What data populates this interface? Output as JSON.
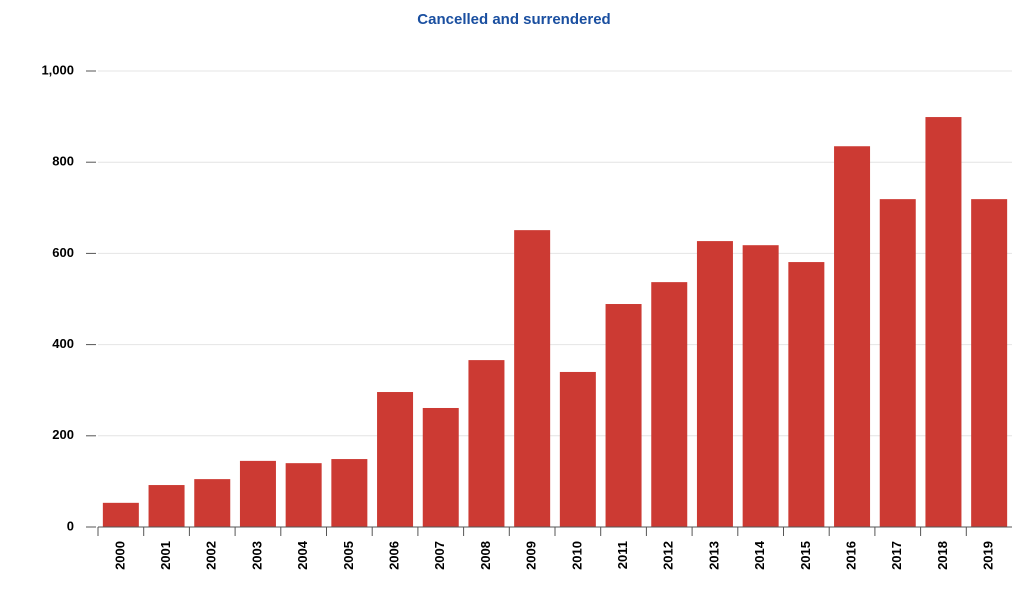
{
  "chart_data": {
    "type": "bar",
    "title": "Cancelled and surrendered",
    "categories": [
      "2000",
      "2001",
      "2002",
      "2003",
      "2004",
      "2005",
      "2006",
      "2007",
      "2008",
      "2009",
      "2010",
      "2011",
      "2012",
      "2013",
      "2014",
      "2015",
      "2016",
      "2017",
      "2018",
      "2019"
    ],
    "values": [
      53,
      92,
      105,
      145,
      140,
      149,
      296,
      261,
      366,
      651,
      340,
      489,
      537,
      627,
      618,
      581,
      835,
      719,
      899,
      719
    ],
    "color": "#cc3a33",
    "ylim": [
      0,
      1000
    ],
    "yticks": [
      0,
      200,
      400,
      600,
      800,
      {
        "value": 1000,
        "label": "1,000"
      }
    ],
    "grid": true
  }
}
